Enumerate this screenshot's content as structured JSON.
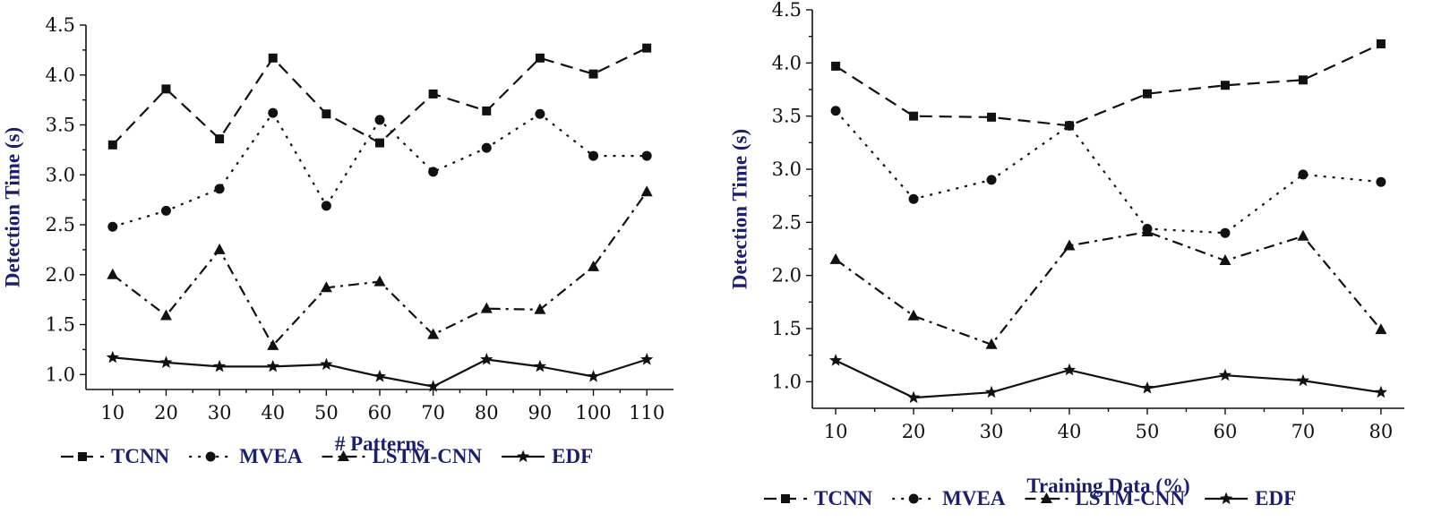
{
  "chart_data": [
    {
      "type": "line",
      "title": "",
      "xlabel": "# Patterns",
      "ylabel": "Detection Time (s)",
      "x": [
        10,
        20,
        30,
        40,
        50,
        60,
        70,
        80,
        90,
        100,
        110
      ],
      "xlim": [
        5,
        115
      ],
      "ylim": [
        0.85,
        4.5
      ],
      "yticks": [
        "1.0",
        "1.5",
        "2.0",
        "2.5",
        "3.0",
        "3.5",
        "4.0",
        "4.5"
      ],
      "xticks": [
        "10",
        "20",
        "30",
        "40",
        "50",
        "60",
        "70",
        "80",
        "90",
        "100",
        "110"
      ],
      "grid": false,
      "legend_position": "bottom",
      "series": [
        {
          "name": "TCNN",
          "values": [
            3.3,
            3.86,
            3.36,
            4.17,
            3.61,
            3.32,
            3.81,
            3.64,
            4.17,
            4.01,
            4.27
          ]
        },
        {
          "name": "MVEA",
          "values": [
            2.48,
            2.64,
            2.86,
            3.62,
            2.69,
            3.55,
            3.03,
            3.27,
            3.61,
            3.19,
            3.19
          ]
        },
        {
          "name": "LSTM-CNN",
          "values": [
            2.0,
            1.59,
            2.25,
            1.29,
            1.87,
            1.93,
            1.4,
            1.66,
            1.65,
            2.08,
            2.83
          ]
        },
        {
          "name": "EDF",
          "values": [
            1.17,
            1.12,
            1.08,
            1.08,
            1.1,
            0.98,
            0.88,
            1.15,
            1.08,
            0.98,
            1.15
          ]
        }
      ]
    },
    {
      "type": "line",
      "title": "",
      "xlabel": "Training Data (%)",
      "ylabel": "Detection Time (s)",
      "x": [
        10,
        20,
        30,
        40,
        50,
        60,
        70,
        80
      ],
      "xlim": [
        7,
        83
      ],
      "ylim": [
        0.75,
        4.5
      ],
      "yticks": [
        "1.0",
        "1.5",
        "2.0",
        "2.5",
        "3.0",
        "3.5",
        "4.0",
        "4.5"
      ],
      "xticks": [
        "10",
        "20",
        "30",
        "40",
        "50",
        "60",
        "70",
        "80"
      ],
      "grid": false,
      "legend_position": "bottom",
      "series": [
        {
          "name": "TCNN",
          "values": [
            3.97,
            3.5,
            3.49,
            3.41,
            3.71,
            3.79,
            3.84,
            4.18
          ]
        },
        {
          "name": "MVEA",
          "values": [
            3.55,
            2.72,
            2.9,
            3.41,
            2.44,
            2.4,
            2.95,
            2.88
          ]
        },
        {
          "name": "LSTM-CNN",
          "values": [
            2.15,
            1.62,
            1.35,
            2.28,
            2.41,
            2.14,
            2.37,
            1.49
          ]
        },
        {
          "name": "EDF",
          "values": [
            1.2,
            0.85,
            0.9,
            1.11,
            0.94,
            1.06,
            1.01,
            0.9
          ]
        }
      ]
    }
  ]
}
